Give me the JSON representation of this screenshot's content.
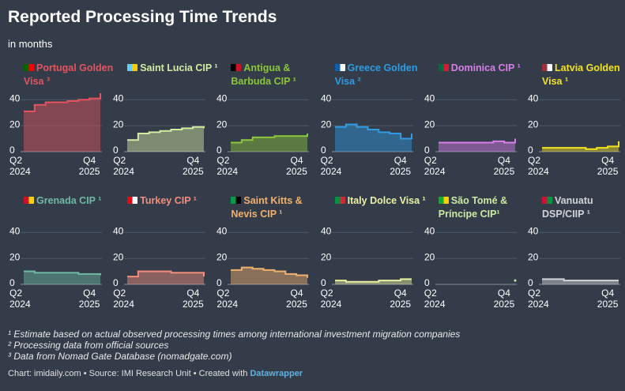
{
  "title": "Reported Processing Time Trends",
  "subtitle": "in months",
  "notes": [
    "¹ Estimate based on actual observed processing times among international investment migration companies",
    "² Processing data from official sources",
    "³ Data from Nomad Gate Database (nomadgate.com)"
  ],
  "footer": {
    "credit": "Chart: imidaily.com • Source: IMI Research Unit • Created with",
    "link": "Datawrapper"
  },
  "chart_data": [
    {
      "type": "area",
      "title": "Portugal Golden Visa ³",
      "color": "#e5535f",
      "x": [
        "Q2 2024",
        null,
        null,
        null,
        null,
        null,
        "Q4 2025",
        null
      ],
      "values": [
        31,
        36,
        38,
        38,
        39,
        40,
        41,
        45
      ],
      "ylim": [
        0,
        45
      ],
      "yticks": [
        0,
        20,
        40
      ],
      "grid": true
    },
    {
      "type": "area",
      "title": "Saint Lucia CIP ¹",
      "color": "#d4eba4",
      "x": [
        "Q2 2024",
        null,
        null,
        null,
        null,
        null,
        "Q4 2025",
        null
      ],
      "values": [
        9,
        14,
        15,
        16,
        17,
        18,
        19,
        18
      ],
      "ylim": [
        0,
        45
      ],
      "yticks": [
        0,
        20,
        40
      ],
      "grid": true
    },
    {
      "type": "area",
      "title": "Antigua & Barbuda CIP ¹",
      "color": "#8cc63a",
      "x": [
        "Q2 2024",
        null,
        null,
        null,
        null,
        null,
        "Q4 2025",
        null
      ],
      "values": [
        7,
        9,
        11,
        11,
        12,
        12,
        12,
        14
      ],
      "ylim": [
        0,
        45
      ],
      "yticks": [
        0,
        20,
        40
      ],
      "grid": true
    },
    {
      "type": "area",
      "title": "Greece Golden Visa ²",
      "color": "#2e9be2",
      "x": [
        "Q2 2024",
        null,
        null,
        null,
        null,
        null,
        "Q4 2025",
        null
      ],
      "values": [
        19,
        21,
        19,
        17,
        15,
        14,
        10,
        14
      ],
      "ylim": [
        0,
        45
      ],
      "yticks": [
        0,
        20,
        40
      ],
      "grid": true
    },
    {
      "type": "area",
      "title": "Dominica CIP ¹",
      "color": "#d77ee8",
      "x": [
        "Q2 2024",
        null,
        null,
        null,
        null,
        null,
        "Q4 2025",
        null
      ],
      "values": [
        7,
        7,
        7,
        7,
        7,
        8,
        7,
        10
      ],
      "ylim": [
        0,
        45
      ],
      "yticks": [
        0,
        20,
        40
      ],
      "grid": true
    },
    {
      "type": "area",
      "title": "Latvia Golden Visa ¹",
      "color": "#f2e31d",
      "x": [
        "Q2 2024",
        null,
        null,
        null,
        null,
        null,
        "Q4 2025",
        null
      ],
      "values": [
        3,
        3,
        3,
        3,
        2,
        3,
        4,
        8
      ],
      "ylim": [
        0,
        45
      ],
      "yticks": [
        0,
        20,
        40
      ],
      "grid": true
    },
    {
      "type": "area",
      "title": "Grenada CIP ¹",
      "color": "#6fb9a2",
      "x": [
        "Q2 2024",
        null,
        null,
        null,
        null,
        null,
        "Q4 2025",
        null
      ],
      "values": [
        10,
        9,
        9,
        9,
        9,
        8,
        8,
        7
      ],
      "ylim": [
        0,
        45
      ],
      "yticks": [
        0,
        20,
        40
      ],
      "grid": true
    },
    {
      "type": "area",
      "title": "Turkey CIP ¹",
      "color": "#f28e7b",
      "x": [
        "Q2 2024",
        null,
        null,
        null,
        null,
        null,
        "Q4 2025",
        null
      ],
      "values": [
        6,
        10,
        10,
        10,
        9,
        9,
        9,
        6
      ],
      "ylim": [
        0,
        45
      ],
      "yticks": [
        0,
        20,
        40
      ],
      "grid": true
    },
    {
      "type": "area",
      "title": "Saint Kitts & Nevis CIP ¹",
      "color": "#f2b06e",
      "x": [
        "Q2 2024",
        null,
        null,
        null,
        null,
        null,
        "Q4 2025",
        null
      ],
      "values": [
        11,
        13,
        12,
        11,
        10,
        8,
        7,
        5
      ],
      "ylim": [
        0,
        45
      ],
      "yticks": [
        0,
        20,
        40
      ],
      "grid": true
    },
    {
      "type": "area",
      "title": "Italy Dolce Visa ¹",
      "color": "#eaf1a4",
      "x": [
        "Q2 2024",
        null,
        null,
        null,
        null,
        null,
        "Q4 2025",
        null
      ],
      "values": [
        3,
        2,
        2,
        2,
        3,
        3,
        4,
        4
      ],
      "ylim": [
        0,
        45
      ],
      "yticks": [
        0,
        20,
        40
      ],
      "grid": true
    },
    {
      "type": "area",
      "title": "São Tomé & Príncipe CIP¹",
      "color": "#cbeaa2",
      "x": [
        "Q2 2024",
        null,
        null,
        null,
        null,
        null,
        "Q4 2025",
        null
      ],
      "values": [
        null,
        null,
        null,
        null,
        null,
        null,
        null,
        3
      ],
      "ylim": [
        0,
        45
      ],
      "yticks": [
        0,
        20,
        40
      ],
      "grid": true
    },
    {
      "type": "area",
      "title": "Vanuatu DSP/CIIP ¹",
      "color": "#d2d4d8",
      "x": [
        "Q2 2024",
        null,
        null,
        null,
        null,
        null,
        "Q4 2025",
        null
      ],
      "values": [
        4,
        4,
        3,
        3,
        3,
        3,
        3,
        3
      ],
      "ylim": [
        0,
        45
      ],
      "yticks": [
        0,
        20,
        40
      ],
      "grid": true
    }
  ]
}
